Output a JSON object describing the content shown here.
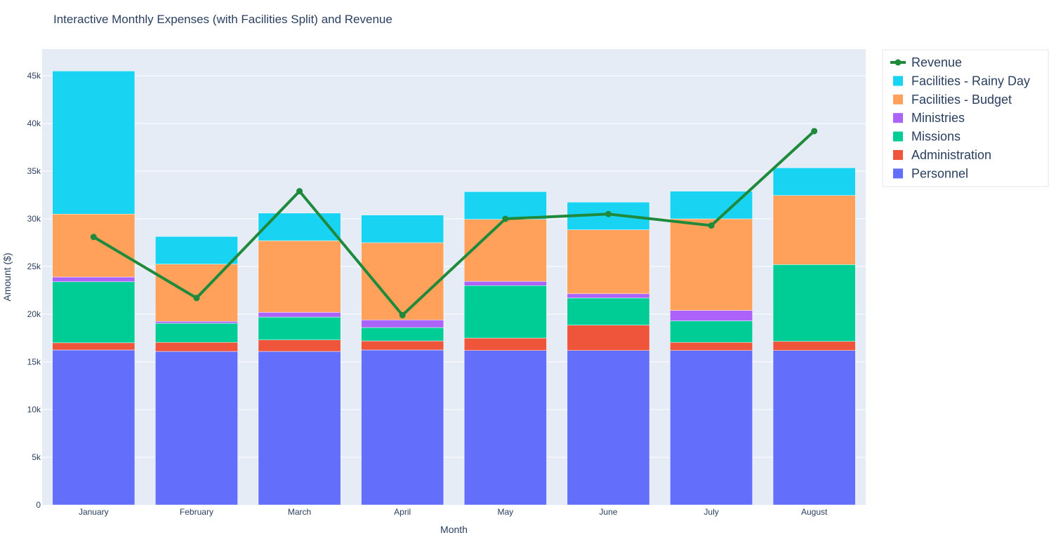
{
  "chart_data": {
    "type": "bar",
    "title": "Interactive Monthly Expenses (with Facilities Split) and Revenue",
    "xlabel": "Month",
    "ylabel": "Amount ($)",
    "ylim": [
      0,
      47800
    ],
    "yticks": [
      0,
      5000,
      10000,
      15000,
      20000,
      25000,
      30000,
      35000,
      40000,
      45000
    ],
    "ytick_labels": [
      "0",
      "5k",
      "10k",
      "15k",
      "20k",
      "25k",
      "30k",
      "35k",
      "40k",
      "45k"
    ],
    "grid": true,
    "barmode": "stack",
    "legend_position": "top-right, outside plot",
    "categories": [
      "January",
      "February",
      "March",
      "April",
      "May",
      "June",
      "July",
      "August"
    ],
    "series": [
      {
        "name": "Personnel",
        "type": "bar",
        "color": "#636efa",
        "values": [
          16250,
          16100,
          16100,
          16250,
          16200,
          16200,
          16200,
          16200
        ]
      },
      {
        "name": "Administration",
        "type": "bar",
        "color": "#ef553b",
        "values": [
          750,
          950,
          1200,
          950,
          1300,
          2650,
          850,
          950
        ]
      },
      {
        "name": "Missions",
        "type": "bar",
        "color": "#00cc96",
        "values": [
          6400,
          2000,
          2400,
          1400,
          5500,
          2850,
          2250,
          8050
        ]
      },
      {
        "name": "Ministries",
        "type": "bar",
        "color": "#ab63fa",
        "values": [
          500,
          200,
          500,
          800,
          450,
          450,
          1100,
          0
        ]
      },
      {
        "name": "Facilities - Budget",
        "type": "bar",
        "color": "#ffa15a",
        "values": [
          6600,
          6000,
          7500,
          8100,
          6500,
          6700,
          9600,
          7250
        ]
      },
      {
        "name": "Facilities - Rainy Day",
        "type": "bar",
        "color": "#19d3f3",
        "values": [
          15000,
          2900,
          2900,
          2900,
          2900,
          2900,
          2900,
          2900
        ]
      },
      {
        "name": "Revenue",
        "type": "line",
        "color": "#1f8a3b",
        "values": [
          28100,
          21700,
          32900,
          19900,
          30000,
          30500,
          29300,
          39200
        ]
      }
    ],
    "legend": [
      "Revenue",
      "Facilities - Rainy Day",
      "Facilities - Budget",
      "Ministries",
      "Missions",
      "Administration",
      "Personnel"
    ]
  }
}
